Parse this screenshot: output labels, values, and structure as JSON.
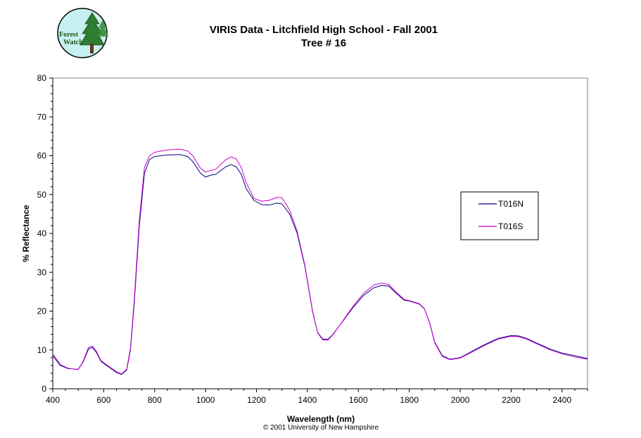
{
  "logo": {
    "line1": "Forest",
    "line2": "Watch"
  },
  "copyright": "© 2001 University of New Hampshire",
  "colors": {
    "T016N": "#000080",
    "T016S": "#cc00cc",
    "plot_border": "#808080"
  },
  "chart_data": {
    "type": "line",
    "title": "VIRIS Data - Litchfield High School - Fall 2001",
    "subtitle": "Tree # 16",
    "xlabel": "Wavelength (nm)",
    "ylabel": "% Reflectance",
    "xlim": [
      400,
      2500
    ],
    "ylim": [
      0,
      80
    ],
    "xticks": [
      400,
      600,
      800,
      1000,
      1200,
      1400,
      1600,
      1800,
      2000,
      2200,
      2400
    ],
    "yticks": [
      0,
      10,
      20,
      30,
      40,
      50,
      60,
      70,
      80
    ],
    "grid": false,
    "legend": {
      "position": "right",
      "entries": [
        "T016N",
        "T016S"
      ]
    },
    "series": [
      {
        "name": "T016N",
        "x": [
          400,
          430,
          460,
          500,
          520,
          540,
          555,
          570,
          590,
          620,
          650,
          670,
          690,
          705,
          720,
          740,
          760,
          780,
          800,
          850,
          900,
          930,
          950,
          980,
          1000,
          1020,
          1040,
          1060,
          1080,
          1100,
          1120,
          1140,
          1160,
          1190,
          1220,
          1250,
          1280,
          1300,
          1330,
          1360,
          1390,
          1420,
          1440,
          1460,
          1480,
          1500,
          1540,
          1580,
          1620,
          1660,
          1690,
          1720,
          1750,
          1780,
          1800,
          1840,
          1860,
          1880,
          1900,
          1930,
          1960,
          2000,
          2050,
          2100,
          2150,
          2200,
          2230,
          2260,
          2300,
          2350,
          2400,
          2450,
          2500
        ],
        "y": [
          8.5,
          6.0,
          5.2,
          5.0,
          7.0,
          10.2,
          10.7,
          9.5,
          7.0,
          5.6,
          4.2,
          3.7,
          4.8,
          10.0,
          22.0,
          42.0,
          55.5,
          59.0,
          59.8,
          60.2,
          60.3,
          59.8,
          58.5,
          55.5,
          54.5,
          55.0,
          55.2,
          56.2,
          57.2,
          57.7,
          57.2,
          55.2,
          51.5,
          48.5,
          47.4,
          47.3,
          47.8,
          47.6,
          45.0,
          40.0,
          31.5,
          20.0,
          14.5,
          12.8,
          12.7,
          14.0,
          17.5,
          21.0,
          24.0,
          26.0,
          26.6,
          26.4,
          24.5,
          22.8,
          22.6,
          21.8,
          20.5,
          17.0,
          12.0,
          8.5,
          7.6,
          8.0,
          9.8,
          11.5,
          13.0,
          13.7,
          13.6,
          13.0,
          11.8,
          10.3,
          9.2,
          8.5,
          7.8
        ]
      },
      {
        "name": "T016S",
        "x": [
          400,
          430,
          460,
          500,
          520,
          540,
          555,
          570,
          590,
          620,
          650,
          670,
          690,
          705,
          720,
          740,
          760,
          780,
          800,
          850,
          900,
          930,
          950,
          980,
          1000,
          1020,
          1040,
          1060,
          1080,
          1100,
          1120,
          1140,
          1160,
          1190,
          1220,
          1250,
          1280,
          1300,
          1330,
          1360,
          1390,
          1420,
          1440,
          1460,
          1480,
          1500,
          1540,
          1580,
          1620,
          1660,
          1690,
          1720,
          1750,
          1780,
          1800,
          1840,
          1860,
          1880,
          1900,
          1930,
          1960,
          2000,
          2050,
          2100,
          2150,
          2200,
          2230,
          2260,
          2300,
          2350,
          2400,
          2450,
          2500
        ],
        "y": [
          9.0,
          6.2,
          5.3,
          4.9,
          7.2,
          10.6,
          11.0,
          9.8,
          7.2,
          5.8,
          4.4,
          3.8,
          5.0,
          10.5,
          23.0,
          43.5,
          57.0,
          60.0,
          60.9,
          61.5,
          61.7,
          61.2,
          60.0,
          56.8,
          55.8,
          56.2,
          56.5,
          57.8,
          59.0,
          59.7,
          59.2,
          57.0,
          53.0,
          49.0,
          48.3,
          48.5,
          49.3,
          49.2,
          46.0,
          40.5,
          31.8,
          20.2,
          14.4,
          12.6,
          12.5,
          13.9,
          17.6,
          21.3,
          24.5,
          26.7,
          27.2,
          26.8,
          24.8,
          23.0,
          22.7,
          21.9,
          20.6,
          16.9,
          11.8,
          8.3,
          7.5,
          7.9,
          9.6,
          11.3,
          12.8,
          13.5,
          13.4,
          12.8,
          11.6,
          10.1,
          9.0,
          8.2,
          7.6
        ]
      }
    ]
  }
}
